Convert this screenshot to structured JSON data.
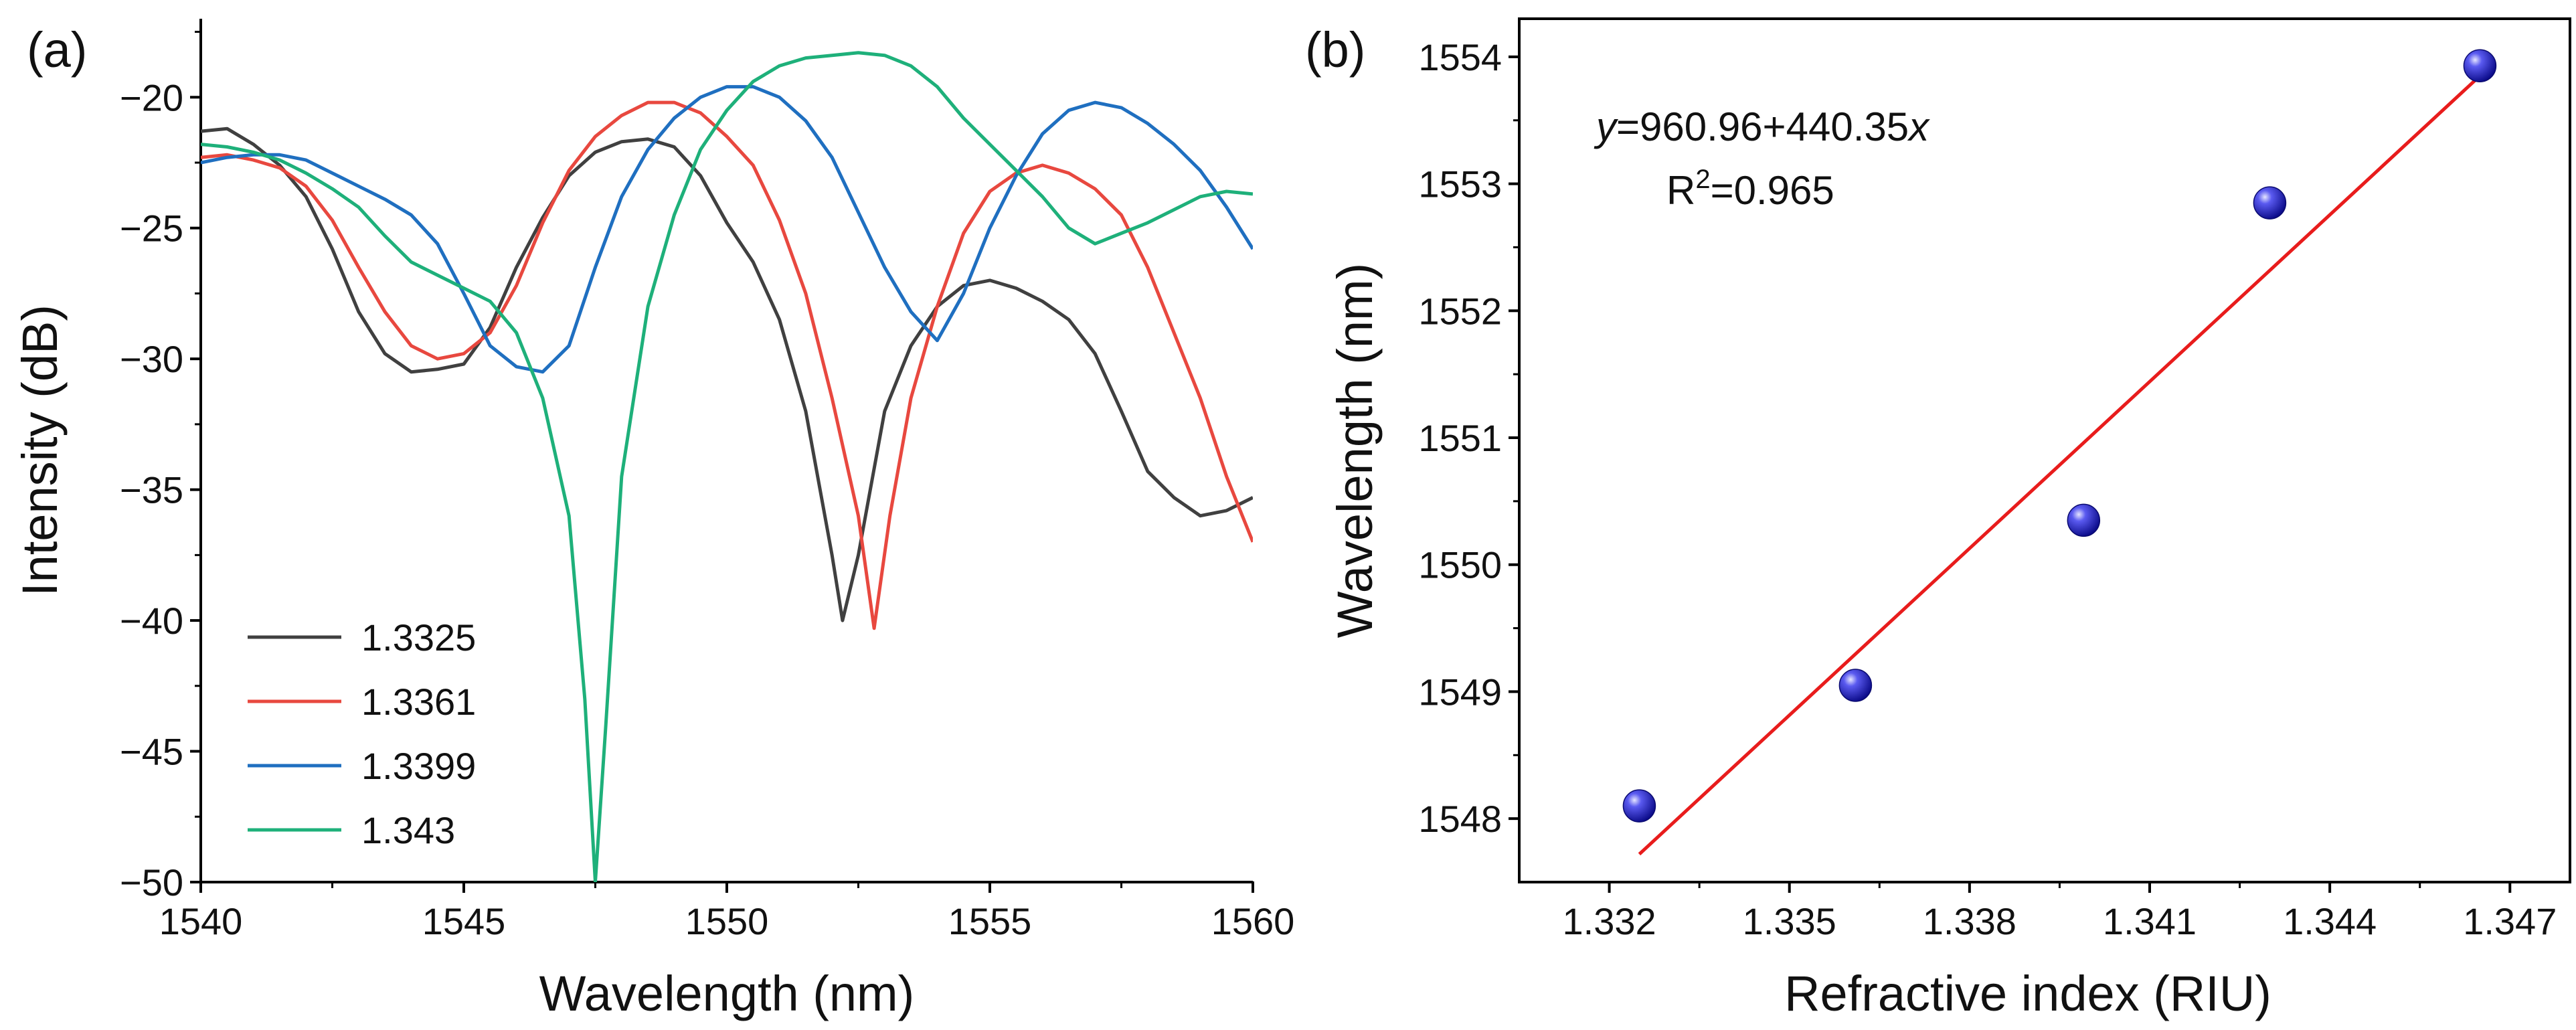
{
  "chart_data": [
    {
      "panel": "(a)",
      "type": "line",
      "xlabel": "Wavelength (nm)",
      "ylabel": "Intensity (dB)",
      "xlim": [
        1540,
        1560
      ],
      "ylim": [
        -50,
        -17
      ],
      "xticks": [
        "1540",
        "1545",
        "1550",
        "1555",
        "1560"
      ],
      "yticks": [
        "−20",
        "−25",
        "−30",
        "−35",
        "−40",
        "−45",
        "−50"
      ],
      "ytick_values": [
        -20,
        -25,
        -30,
        -35,
        -40,
        -45,
        -50
      ],
      "xtick_values": [
        1540,
        1545,
        1550,
        1555,
        1560
      ],
      "legend_position": "bottom-left",
      "series": [
        {
          "name": "1.3325",
          "color": "#404040",
          "x": [
            1540,
            1540.5,
            1541,
            1541.5,
            1542,
            1542.5,
            1543,
            1543.5,
            1544,
            1544.5,
            1545,
            1545.5,
            1546,
            1546.5,
            1547,
            1547.5,
            1548,
            1548.5,
            1549,
            1549.5,
            1550,
            1550.5,
            1551,
            1551.5,
            1552,
            1552.2,
            1552.5,
            1553,
            1553.5,
            1554,
            1554.5,
            1555,
            1555.5,
            1556,
            1556.5,
            1557,
            1557.5,
            1558,
            1558.5,
            1559,
            1559.5,
            1560
          ],
          "y": [
            -21.3,
            -21.2,
            -21.8,
            -22.6,
            -23.8,
            -25.8,
            -28.2,
            -29.8,
            -30.5,
            -30.4,
            -30.2,
            -28.8,
            -26.5,
            -24.6,
            -23,
            -22.1,
            -21.7,
            -21.6,
            -21.9,
            -23,
            -24.8,
            -26.3,
            -28.5,
            -32,
            -37.5,
            -40,
            -37.5,
            -32,
            -29.5,
            -28,
            -27.2,
            -27,
            -27.3,
            -27.8,
            -28.5,
            -29.8,
            -32,
            -34.3,
            -35.3,
            -36,
            -35.8,
            -35.3
          ]
        },
        {
          "name": "1.3361",
          "color": "#e8483f",
          "x": [
            1540,
            1540.5,
            1541,
            1541.5,
            1542,
            1542.5,
            1543,
            1543.5,
            1544,
            1544.5,
            1545,
            1545.5,
            1546,
            1546.5,
            1547,
            1547.5,
            1548,
            1548.5,
            1549,
            1549.5,
            1550,
            1550.5,
            1551,
            1551.5,
            1552,
            1552.5,
            1552.8,
            1553.1,
            1553.5,
            1554,
            1554.5,
            1555,
            1555.5,
            1556,
            1556.5,
            1557,
            1557.5,
            1558,
            1558.5,
            1559,
            1559.5,
            1560
          ],
          "y": [
            -22.3,
            -22.2,
            -22.4,
            -22.7,
            -23.4,
            -24.7,
            -26.5,
            -28.2,
            -29.5,
            -30,
            -29.8,
            -29,
            -27.2,
            -24.8,
            -22.8,
            -21.5,
            -20.7,
            -20.2,
            -20.2,
            -20.6,
            -21.5,
            -22.6,
            -24.7,
            -27.5,
            -31.5,
            -36,
            -40.3,
            -36,
            -31.5,
            -28,
            -25.2,
            -23.6,
            -22.9,
            -22.6,
            -22.9,
            -23.5,
            -24.5,
            -26.5,
            -29,
            -31.5,
            -34.5,
            -37
          ]
        },
        {
          "name": "1.3399",
          "color": "#1f6fc0",
          "x": [
            1540,
            1540.5,
            1541,
            1541.5,
            1542,
            1542.5,
            1543,
            1543.5,
            1544,
            1544.5,
            1545,
            1545.5,
            1546,
            1546.5,
            1547,
            1547.5,
            1548,
            1548.5,
            1549,
            1549.5,
            1550,
            1550.5,
            1551,
            1551.5,
            1552,
            1552.5,
            1553,
            1553.5,
            1554,
            1554.5,
            1555,
            1555.5,
            1556,
            1556.5,
            1557,
            1557.5,
            1558,
            1558.5,
            1559,
            1559.5,
            1560
          ],
          "y": [
            -22.5,
            -22.3,
            -22.2,
            -22.2,
            -22.4,
            -22.9,
            -23.4,
            -23.9,
            -24.5,
            -25.6,
            -27.5,
            -29.5,
            -30.3,
            -30.5,
            -29.5,
            -26.5,
            -23.8,
            -22,
            -20.8,
            -20,
            -19.6,
            -19.6,
            -20,
            -20.9,
            -22.3,
            -24.4,
            -26.5,
            -28.2,
            -29.3,
            -27.5,
            -25,
            -23,
            -21.4,
            -20.5,
            -20.2,
            -20.4,
            -21,
            -21.8,
            -22.8,
            -24.2,
            -25.8
          ]
        },
        {
          "name": "1.343",
          "color": "#1eb07a",
          "x": [
            1540,
            1540.5,
            1541,
            1541.5,
            1542,
            1542.5,
            1543,
            1543.5,
            1544,
            1544.5,
            1545,
            1545.5,
            1546,
            1546.5,
            1547,
            1547.3,
            1547.5,
            1547.7,
            1548,
            1548.5,
            1549,
            1549.5,
            1550,
            1550.5,
            1551,
            1551.5,
            1552,
            1552.5,
            1553,
            1553.5,
            1554,
            1554.5,
            1555,
            1555.5,
            1556,
            1556.5,
            1557,
            1557.5,
            1558,
            1558.5,
            1559,
            1559.5,
            1560
          ],
          "y": [
            -21.8,
            -21.9,
            -22.1,
            -22.4,
            -22.9,
            -23.5,
            -24.2,
            -25.3,
            -26.3,
            -26.8,
            -27.3,
            -27.8,
            -29,
            -31.5,
            -36,
            -43,
            -50,
            -44,
            -34.5,
            -28,
            -24.5,
            -22,
            -20.5,
            -19.4,
            -18.8,
            -18.5,
            -18.4,
            -18.3,
            -18.4,
            -18.8,
            -19.6,
            -20.8,
            -21.8,
            -22.8,
            -23.8,
            -25,
            -25.6,
            -25.2,
            -24.8,
            -24.3,
            -23.8,
            -23.6,
            -23.7
          ]
        }
      ]
    },
    {
      "panel": "(b)",
      "type": "scatter",
      "xlabel": "Refractive index (RIU)",
      "ylabel": "Wavelength (nm)",
      "xlim": [
        1.3305,
        1.348
      ],
      "ylim": [
        1547.5,
        1554.3
      ],
      "xticks": [
        "1.332",
        "1.335",
        "1.338",
        "1.341",
        "1.344",
        "1.347"
      ],
      "xtick_values": [
        1.332,
        1.335,
        1.338,
        1.341,
        1.344,
        1.347
      ],
      "yticks": [
        "1548",
        "1549",
        "1550",
        "1551",
        "1552",
        "1553",
        "1554"
      ],
      "ytick_values": [
        1548,
        1549,
        1550,
        1551,
        1552,
        1553,
        1554
      ],
      "points": {
        "x": [
          1.3325,
          1.3361,
          1.3399,
          1.343,
          1.3465
        ],
        "y": [
          1548.1,
          1549.05,
          1550.35,
          1552.85,
          1553.93
        ],
        "color": "#1f1fd6"
      },
      "fit_line": {
        "x": [
          1.3325,
          1.3465
        ],
        "y": [
          1547.72,
          1553.85
        ],
        "color": "#e81c1c"
      },
      "equation_y": "y",
      "equation_rest": "=960.96+440.35",
      "equation_x": "x",
      "r2_prefix": "R",
      "r2_sup": "2",
      "r2_value": "=0.965"
    }
  ]
}
